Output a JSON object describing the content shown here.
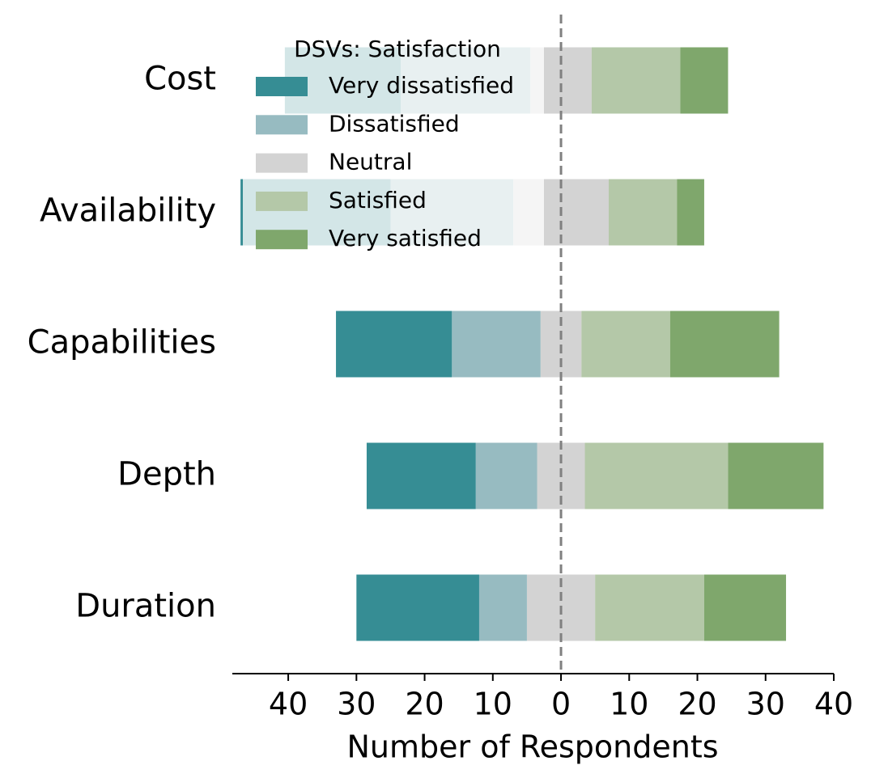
{
  "chart_data": {
    "type": "diverging_bar",
    "categories": [
      "Cost",
      "Availability",
      "Capabilities",
      "Depth",
      "Duration"
    ],
    "series": [
      {
        "name": "Very dissatisfied",
        "color": "#368d94",
        "values": [
          17,
          22,
          17,
          16,
          18
        ]
      },
      {
        "name": "Dissatisfied",
        "color": "#97bbc1",
        "values": [
          19,
          18,
          13,
          9,
          7
        ]
      },
      {
        "name": "Neutral",
        "color": "#d3d3d3",
        "values": [
          9,
          14,
          6,
          7,
          10
        ]
      },
      {
        "name": "Satisfied",
        "color": "#b4c8a8",
        "values": [
          13,
          10,
          13,
          21,
          16
        ]
      },
      {
        "name": "Very satisfied",
        "color": "#7fa76c",
        "values": [
          7,
          4,
          16,
          14,
          12
        ]
      }
    ],
    "legend_title": "DSVs: Satisfaction",
    "legend_position": "upper left",
    "xlabel": "Number of Respondents",
    "xlim": [
      -48.2,
      40
    ],
    "xticks": [
      {
        "value": -40,
        "label": "40"
      },
      {
        "value": -30,
        "label": "30"
      },
      {
        "value": -20,
        "label": "20"
      },
      {
        "value": -10,
        "label": "10"
      },
      0,
      10,
      20,
      30,
      40
    ]
  }
}
